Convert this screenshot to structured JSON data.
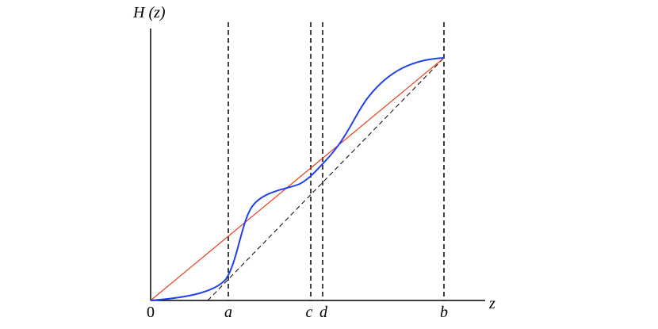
{
  "axes": {
    "y_label": "H (z)",
    "x_label": "z"
  },
  "x_labels": [
    "0",
    "a",
    "c",
    "d",
    "b"
  ]
}
